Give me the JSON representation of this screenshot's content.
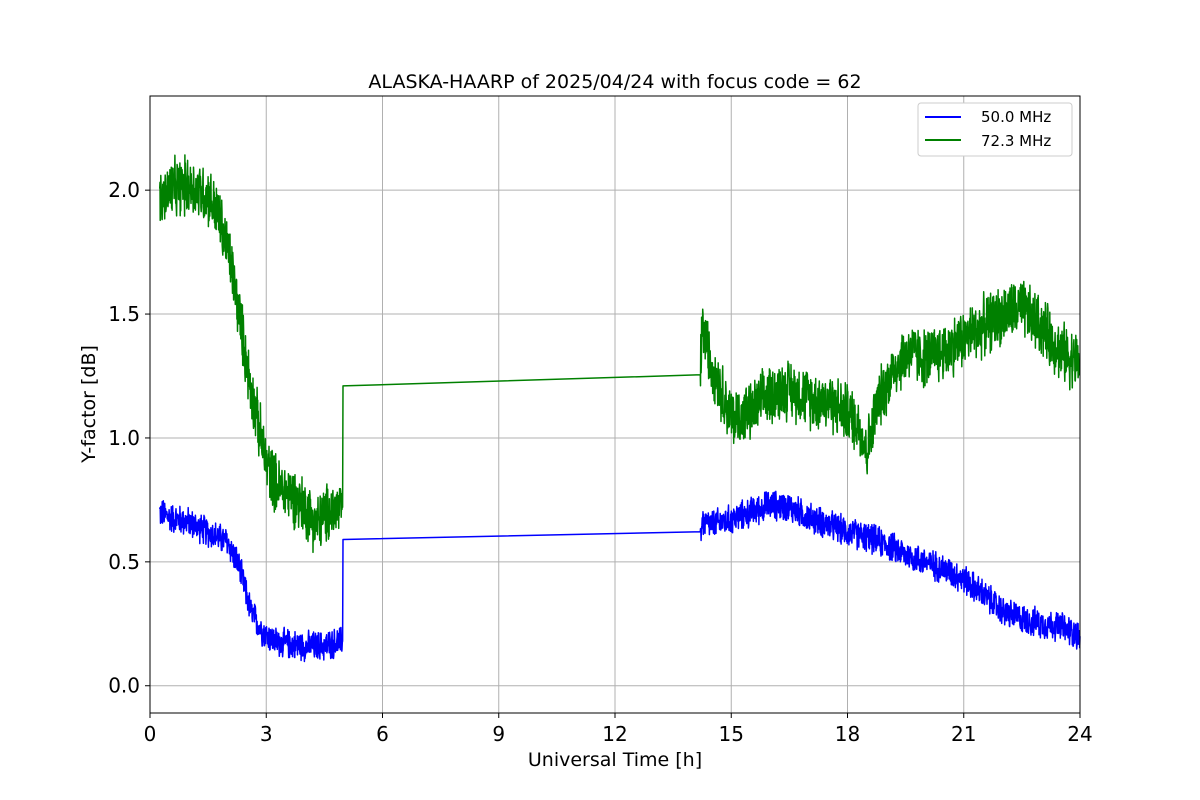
{
  "chart_data": {
    "type": "line",
    "title": "ALASKA-HAARP of 2025/04/24 with focus code = 62",
    "xlabel": "Universal Time [h]",
    "ylabel": "Y-factor [dB]",
    "xlim": [
      0,
      24
    ],
    "ylim": [
      -0.11,
      2.38
    ],
    "xticks": [
      0,
      3,
      6,
      9,
      12,
      15,
      18,
      21,
      24
    ],
    "xtick_labels": [
      "0",
      "3",
      "6",
      "9",
      "12",
      "15",
      "18",
      "21",
      "24"
    ],
    "yticks": [
      0.0,
      0.5,
      1.0,
      1.5,
      2.0
    ],
    "ytick_labels": [
      "0.0",
      "0.5",
      "1.0",
      "1.5",
      "2.0"
    ],
    "grid": true,
    "legend_position": "top-right",
    "series": [
      {
        "name": "50.0 MHz",
        "color": "#0000ff",
        "noise": 0.05,
        "x": [
          0.25,
          0.5,
          1.0,
          1.5,
          2.0,
          2.3,
          2.6,
          2.9,
          3.2,
          3.5,
          4.0,
          4.5,
          4.97,
          4.98,
          14.2,
          14.25,
          14.5,
          15.0,
          15.5,
          16.0,
          16.5,
          17.0,
          17.5,
          18.0,
          18.5,
          19.0,
          19.5,
          20.0,
          20.5,
          21.0,
          21.5,
          22.0,
          22.5,
          23.0,
          23.5,
          24.0
        ],
        "y": [
          0.7,
          0.68,
          0.66,
          0.62,
          0.58,
          0.48,
          0.3,
          0.22,
          0.18,
          0.17,
          0.16,
          0.16,
          0.18,
          0.59,
          0.61,
          0.66,
          0.65,
          0.67,
          0.7,
          0.73,
          0.72,
          0.68,
          0.65,
          0.62,
          0.6,
          0.57,
          0.53,
          0.5,
          0.47,
          0.43,
          0.37,
          0.3,
          0.27,
          0.25,
          0.24,
          0.2
        ]
      },
      {
        "name": "72.3 MHz",
        "color": "#008000",
        "noise": 0.1,
        "x": [
          0.25,
          0.5,
          1.0,
          1.5,
          1.8,
          2.1,
          2.4,
          2.6,
          2.8,
          3.0,
          3.3,
          3.6,
          4.0,
          4.3,
          4.6,
          4.97,
          4.98,
          14.2,
          14.25,
          14.5,
          15.0,
          15.5,
          16.0,
          16.5,
          17.0,
          17.5,
          18.0,
          18.3,
          18.5,
          18.8,
          19.2,
          19.6,
          20.0,
          20.5,
          21.0,
          21.5,
          22.0,
          22.5,
          23.0,
          23.5,
          24.0
        ],
        "y": [
          1.95,
          2.0,
          2.02,
          1.98,
          1.88,
          1.7,
          1.4,
          1.2,
          1.05,
          0.9,
          0.8,
          0.78,
          0.72,
          0.65,
          0.7,
          0.72,
          1.21,
          1.24,
          1.45,
          1.3,
          1.08,
          1.1,
          1.18,
          1.2,
          1.16,
          1.15,
          1.1,
          1.05,
          0.95,
          1.15,
          1.28,
          1.35,
          1.32,
          1.35,
          1.4,
          1.45,
          1.5,
          1.52,
          1.45,
          1.35,
          1.3
        ]
      }
    ]
  }
}
